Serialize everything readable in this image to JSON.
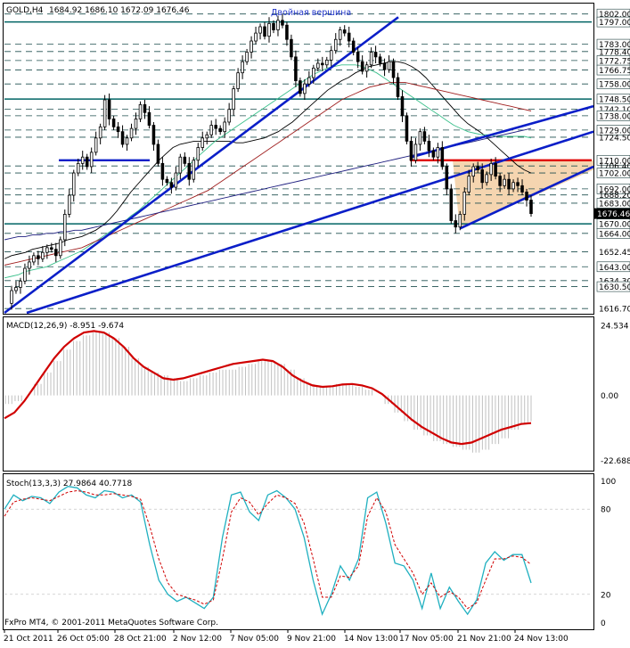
{
  "colors": {
    "background": "#ffffff",
    "candle_up": "#ffffff",
    "candle_down": "#000000",
    "candle_wick": "#000000",
    "level_dashed": "#1f4f4f",
    "level_solid": "#006464",
    "trend_line": "#0a1ec8",
    "red_line": "#e00000",
    "triangle_fill": "#f5d5b0",
    "ma_green": "#3cc08c",
    "ma_dark_red": "#a02020",
    "ma_navy": "#202080",
    "ma_black": "#000000",
    "macd_line": "#d00000",
    "histogram": "#c0c0c0",
    "stoch_main": "#20b0c0",
    "stoch_signal": "#d00000",
    "current_price_bg": "#000000",
    "current_price_fg": "#ffffff"
  },
  "main": {
    "symbol": "GOLD,H4",
    "ohlc": "1684.92 1686.10 1672.09 1676.46",
    "annotation": "Двойная вершина",
    "current_price": "1676.46",
    "level_labels": [
      "1802.00",
      "1797.00",
      "1783.00",
      "1778.40",
      "1772.75",
      "1766.75",
      "1758.00",
      "1748.50",
      "1742.10",
      "1738.00",
      "1729.00",
      "1724.50",
      "1710.00",
      "1706.40",
      "1702.00",
      "1692.00",
      "1688.20",
      "1683.00",
      "1670.00",
      "1664.00",
      "1652.45",
      "1643.00",
      "1634.30",
      "1630.50",
      "1616.70"
    ],
    "y_min": 1614.0,
    "y_max": 1808.0
  },
  "macd": {
    "label": "MACD(12,26,9) -8.951 -9.674",
    "tick_labels": [
      "24.534",
      "0.00",
      "-22.688"
    ],
    "y_min": -26.0,
    "y_max": 27.0
  },
  "stoch": {
    "label": "Stoch(13,3,3) 27.9864 40.7718",
    "tick_labels": [
      "100",
      "80",
      "20",
      "0"
    ],
    "y_min": -4,
    "y_max": 104
  },
  "time_axis": [
    "21 Oct 2011",
    "26 Oct 05:00",
    "28 Oct 21:00",
    "2 Nov 12:00",
    "7 Nov 05:00",
    "9 Nov 21:00",
    "14 Nov 13:00",
    "17 Nov 05:00",
    "21 Nov 21:00",
    "24 Nov 13:00"
  ],
  "copyright": "FxPro MT4, © 2001-2011 MetaQuotes Software Corp.",
  "chart_data": [
    {
      "type": "candlestick",
      "title": "GOLD,H4",
      "ohlc_note": "1684.92 1686.10 1672.09 1676.46",
      "x_labels": [
        "21 Oct 2011",
        "26 Oct 05:00",
        "28 Oct 21:00",
        "2 Nov 12:00",
        "7 Nov 05:00",
        "9 Nov 21:00",
        "14 Nov 13:00",
        "17 Nov 05:00",
        "21 Nov 21:00",
        "24 Nov 13:00"
      ],
      "ylim": [
        1614.0,
        1808.0
      ],
      "closes": [
        1620,
        1628,
        1630,
        1634,
        1642,
        1646,
        1650,
        1648,
        1652,
        1655,
        1654,
        1650,
        1660,
        1676,
        1688,
        1702,
        1708,
        1712,
        1706,
        1715,
        1724,
        1731,
        1748,
        1736,
        1731,
        1728,
        1720,
        1724,
        1730,
        1736,
        1745,
        1740,
        1732,
        1720,
        1708,
        1698,
        1696,
        1693,
        1702,
        1712,
        1708,
        1698,
        1710,
        1718,
        1724,
        1726,
        1732,
        1730,
        1728,
        1734,
        1742,
        1755,
        1765,
        1772,
        1778,
        1785,
        1790,
        1794,
        1788,
        1796,
        1792,
        1798,
        1795,
        1786,
        1775,
        1760,
        1752,
        1758,
        1762,
        1768,
        1771,
        1770,
        1773,
        1779,
        1786,
        1792,
        1790,
        1785,
        1778,
        1772,
        1766,
        1770,
        1778,
        1775,
        1771,
        1767,
        1772,
        1762,
        1750,
        1738,
        1722,
        1710,
        1720,
        1728,
        1722,
        1716,
        1712,
        1718,
        1706,
        1692,
        1672,
        1668,
        1676,
        1690,
        1700,
        1706,
        1704,
        1696,
        1701,
        1708,
        1700,
        1694,
        1698,
        1692,
        1696,
        1694,
        1690,
        1684.92,
        1676.46
      ],
      "horizontal_levels": [
        1802.0,
        1797.0,
        1783.0,
        1778.4,
        1772.75,
        1766.75,
        1758.0,
        1748.5,
        1742.1,
        1738.0,
        1729.0,
        1724.5,
        1710.0,
        1706.4,
        1702.0,
        1692.0,
        1688.2,
        1683.0,
        1670.0,
        1664.0,
        1652.45,
        1643.0,
        1634.3,
        1630.5,
        1616.7
      ],
      "moving_averages": [
        {
          "name": "ma_black",
          "values": [
            1648,
            1650,
            1651,
            1652,
            1654,
            1655,
            1656,
            1657,
            1658,
            1660,
            1661,
            1662,
            1664,
            1666,
            1669,
            1673,
            1678,
            1684,
            1690,
            1695,
            1700,
            1705,
            1710,
            1714,
            1718,
            1720,
            1721,
            1722,
            1722,
            1722,
            1722,
            1722,
            1722,
            1721,
            1721,
            1722,
            1723,
            1724,
            1726,
            1728,
            1731,
            1734,
            1738,
            1742,
            1746,
            1750,
            1754,
            1757,
            1760,
            1762,
            1765,
            1767,
            1769,
            1770,
            1771,
            1772,
            1772,
            1771,
            1769,
            1766,
            1762,
            1757,
            1752,
            1747,
            1742,
            1737,
            1733,
            1730,
            1727,
            1723,
            1719,
            1715,
            1711,
            1707,
            1704,
            1702
          ]
        },
        {
          "name": "ma_green",
          "values": [
            1636,
            1637,
            1638,
            1640,
            1641,
            1642,
            1643,
            1645,
            1647,
            1649,
            1651,
            1653,
            1656,
            1659,
            1662,
            1665,
            1668,
            1671,
            1675,
            1678,
            1682,
            1686,
            1690,
            1694,
            1698,
            1702,
            1706,
            1710,
            1714,
            1718,
            1722,
            1725,
            1728,
            1731,
            1734,
            1737,
            1740,
            1743,
            1746,
            1749,
            1752,
            1755,
            1758,
            1761,
            1764,
            1766,
            1768,
            1769,
            1770,
            1770,
            1770,
            1769,
            1767,
            1765,
            1762,
            1759,
            1756,
            1753,
            1750,
            1747,
            1744,
            1741,
            1738,
            1735,
            1732,
            1730,
            1728,
            1727,
            1726,
            1726,
            1725,
            1725,
            1725,
            1725,
            1725,
            1724
          ]
        },
        {
          "name": "ma_dark_red",
          "values": [
            1644,
            1645,
            1646,
            1647,
            1648,
            1649,
            1650,
            1651,
            1652,
            1653,
            1654,
            1655,
            1657,
            1659,
            1661,
            1663,
            1665,
            1667,
            1669,
            1671,
            1673,
            1675,
            1677,
            1679,
            1681,
            1683,
            1685,
            1687,
            1689,
            1691,
            1694,
            1697,
            1700,
            1703,
            1706,
            1709,
            1712,
            1715,
            1718,
            1721,
            1724,
            1727,
            1730,
            1733,
            1736,
            1739,
            1742,
            1745,
            1748,
            1750,
            1752,
            1754,
            1756,
            1757,
            1758,
            1759,
            1759,
            1759,
            1758,
            1757,
            1756,
            1755,
            1754,
            1753,
            1752,
            1751,
            1750,
            1749,
            1748,
            1747,
            1746,
            1745,
            1744,
            1743,
            1742,
            1741
          ]
        },
        {
          "name": "ma_navy",
          "values": [
            1660,
            1661,
            1662,
            1662,
            1663,
            1663,
            1664,
            1664,
            1665,
            1665,
            1666,
            1666,
            1667,
            1668,
            1669,
            1670,
            1671,
            1672,
            1673,
            1674,
            1675,
            1676,
            1677,
            1678,
            1679,
            1680,
            1681,
            1682,
            1683,
            1684,
            1685,
            1686,
            1687,
            1688,
            1689,
            1690,
            1691,
            1692,
            1693,
            1694,
            1695,
            1696,
            1697,
            1698,
            1699,
            1700,
            1701,
            1702,
            1703,
            1704,
            1705,
            1706,
            1707,
            1708,
            1709,
            1710,
            1711,
            1712,
            1713,
            1714,
            1715,
            1716,
            1717,
            1718,
            1719,
            1720,
            1721,
            1722,
            1723,
            1724,
            1725,
            1726,
            1727,
            1728,
            1729,
            1730
          ]
        }
      ]
    },
    {
      "type": "line",
      "title": "MACD(12,26,9) -8.951 -9.674",
      "ylim": [
        -26,
        27
      ],
      "series": [
        {
          "name": "histogram",
          "values": [
            -3,
            -2,
            0,
            4,
            8,
            12,
            16,
            19,
            21,
            22,
            22,
            20,
            17,
            13,
            10,
            8,
            7,
            6,
            5,
            6,
            7,
            8,
            9,
            9,
            10,
            11,
            12,
            12,
            11,
            9,
            6,
            4,
            3,
            3,
            4,
            4,
            3,
            2,
            0,
            -3,
            -6,
            -9,
            -12,
            -14,
            -16,
            -17,
            -18,
            -19,
            -20,
            -19,
            -17,
            -15,
            -12,
            -10,
            -9
          ]
        },
        {
          "name": "signal",
          "values": [
            -8,
            -6,
            -2,
            3,
            8,
            13,
            17,
            20,
            22,
            22.5,
            22,
            20,
            17,
            13,
            10,
            8,
            6,
            5.5,
            6,
            7,
            8,
            9,
            10,
            11,
            11.5,
            12,
            12.5,
            12,
            10,
            7,
            5,
            3.5,
            3,
            3.2,
            3.8,
            4,
            3.5,
            2.5,
            0.5,
            -2.5,
            -5.5,
            -8.5,
            -11,
            -13,
            -15,
            -16.5,
            -17,
            -16.5,
            -15,
            -13.5,
            -12,
            -11,
            -10,
            -9.7
          ]
        }
      ]
    },
    {
      "type": "line",
      "title": "Stoch(13,3,3) 27.9864 40.7718",
      "ylim": [
        0,
        100
      ],
      "series": [
        {
          "name": "main",
          "values": [
            80,
            90,
            86,
            89,
            88,
            84,
            92,
            96,
            95,
            90,
            88,
            93,
            92,
            88,
            90,
            85,
            55,
            30,
            20,
            15,
            18,
            14,
            10,
            18,
            60,
            90,
            92,
            78,
            72,
            90,
            93,
            88,
            80,
            60,
            30,
            6,
            20,
            40,
            30,
            45,
            88,
            92,
            70,
            42,
            40,
            30,
            10,
            35,
            10,
            25,
            15,
            6,
            16,
            42,
            50,
            44,
            48,
            48,
            28
          ]
        },
        {
          "name": "signal",
          "values": [
            75,
            85,
            87,
            88,
            87,
            86,
            89,
            92,
            93,
            92,
            90,
            90,
            91,
            90,
            89,
            87,
            68,
            45,
            28,
            20,
            18,
            16,
            13,
            16,
            45,
            78,
            88,
            85,
            76,
            84,
            90,
            88,
            84,
            70,
            45,
            18,
            18,
            33,
            32,
            40,
            75,
            88,
            78,
            55,
            45,
            35,
            20,
            28,
            18,
            22,
            18,
            10,
            14,
            30,
            45,
            45,
            47,
            46,
            41
          ]
        }
      ]
    }
  ]
}
